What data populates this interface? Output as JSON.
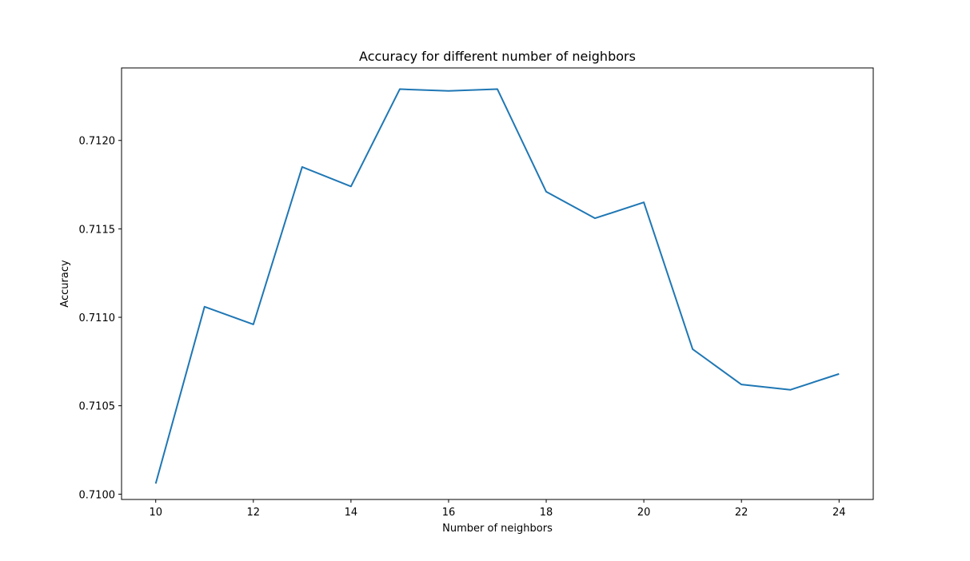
{
  "chart_data": {
    "type": "line",
    "title": "Accuracy for different number of neighbors",
    "xlabel": "Number of neighbors",
    "ylabel": "Accuracy",
    "xlim": [
      9.3,
      24.7
    ],
    "ylim": [
      0.70997,
      0.71241
    ],
    "xticks": [
      10,
      12,
      14,
      16,
      18,
      20,
      22,
      24
    ],
    "yticks": [
      0.71,
      0.7105,
      0.711,
      0.7115,
      0.712
    ],
    "ytick_labels": [
      "0.7100",
      "0.7105",
      "0.7110",
      "0.7115",
      "0.7120"
    ],
    "grid": false,
    "series": [
      {
        "color": "#1f77b4",
        "x": [
          10,
          11,
          12,
          13,
          14,
          15,
          16,
          17,
          18,
          19,
          20,
          21,
          22,
          23,
          24
        ],
        "y": [
          0.71006,
          0.71106,
          0.71096,
          0.71185,
          0.71174,
          0.71229,
          0.71228,
          0.71229,
          0.71171,
          0.71156,
          0.71165,
          0.71082,
          0.71062,
          0.71059,
          0.71068
        ]
      }
    ]
  }
}
